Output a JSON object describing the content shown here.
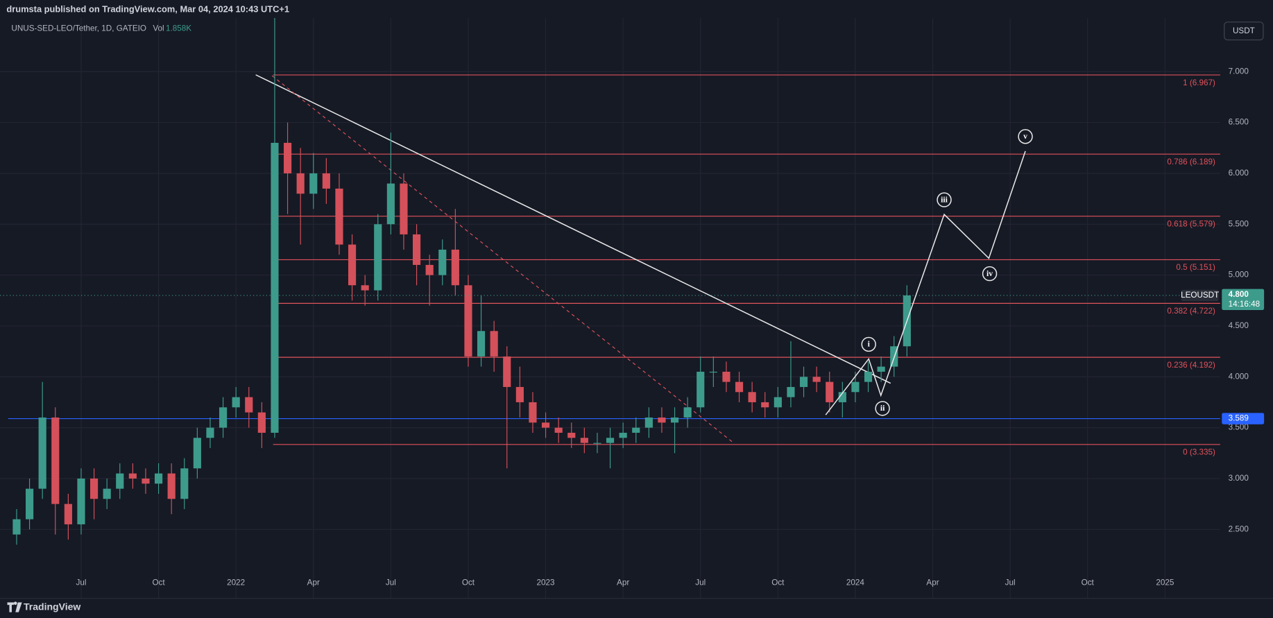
{
  "chart_data": {
    "type": "candlestick",
    "published": "drumsta published on TradingView.com, Mar 04, 2024 10:43 UTC+1",
    "title": "UNUS-SED-LEO/Tether, 1D, GATEIO",
    "volume_label": "Vol",
    "volume": "1.858K",
    "currency": "USDT",
    "symbol": "LEOUSDT",
    "countdown": "14:16:48",
    "brand": "TradingView",
    "up_color": "#3d9b8c",
    "down_color": "#d4505a",
    "grid": true,
    "xlim": [
      3.17,
      50.14
    ],
    "ylim": [
      1.87,
      7.527
    ],
    "xticks": [
      {
        "value": 6,
        "label": "Jul"
      },
      {
        "value": 9,
        "label": "Oct"
      },
      {
        "value": 12,
        "label": "2022"
      },
      {
        "value": 15,
        "label": "Apr"
      },
      {
        "value": 18,
        "label": "Jul"
      },
      {
        "value": 21,
        "label": "Oct"
      },
      {
        "value": 24,
        "label": "2023"
      },
      {
        "value": 27,
        "label": "Apr"
      },
      {
        "value": 30,
        "label": "Jul"
      },
      {
        "value": 33,
        "label": "Oct"
      },
      {
        "value": 36,
        "label": "2024"
      },
      {
        "value": 39,
        "label": "Apr"
      },
      {
        "value": 42,
        "label": "Jul"
      },
      {
        "value": 45,
        "label": "Oct"
      },
      {
        "value": 48,
        "label": "2025"
      }
    ],
    "yticks": [
      {
        "value": 2.5,
        "label": "2.500"
      },
      {
        "value": 3,
        "label": "3.000"
      },
      {
        "value": 3.5,
        "label": "3.500"
      },
      {
        "value": 4,
        "label": "4.000"
      },
      {
        "value": 4.5,
        "label": "4.500"
      },
      {
        "value": 5,
        "label": "5.000"
      },
      {
        "value": 5.5,
        "label": "5.500"
      },
      {
        "value": 6,
        "label": "6.000"
      },
      {
        "value": 6.5,
        "label": "6.500"
      },
      {
        "value": 7,
        "label": "7.000"
      }
    ],
    "x": [
      3.5,
      4.0,
      4.5,
      5.0,
      5.5,
      6.0,
      6.5,
      7.0,
      7.5,
      8.0,
      8.5,
      9.0,
      9.5,
      10.0,
      10.5,
      11.0,
      11.5,
      12.0,
      12.5,
      13.0,
      13.5,
      14.0,
      14.5,
      15.0,
      15.5,
      16.0,
      16.5,
      17.0,
      17.5,
      18.0,
      18.5,
      19.0,
      19.5,
      20.0,
      20.5,
      21.0,
      21.5,
      22.0,
      22.5,
      23.0,
      23.5,
      24.0,
      24.5,
      25.0,
      25.5,
      26.0,
      26.5,
      27.0,
      27.5,
      28.0,
      28.5,
      29.0,
      29.5,
      30.0,
      30.5,
      31.0,
      31.5,
      32.0,
      32.5,
      33.0,
      33.5,
      34.0,
      34.5,
      35.0,
      35.5,
      36.0,
      36.5,
      37.0,
      37.5,
      38.0
    ],
    "open": [
      2.45,
      2.6,
      2.9,
      3.6,
      2.75,
      2.55,
      3.0,
      2.8,
      2.9,
      3.05,
      3.0,
      2.95,
      3.05,
      2.8,
      3.1,
      3.4,
      3.5,
      3.7,
      3.8,
      3.65,
      3.45,
      6.3,
      6.0,
      5.8,
      6.0,
      5.85,
      5.3,
      4.9,
      4.85,
      5.5,
      5.9,
      5.4,
      5.1,
      5.0,
      5.25,
      4.9,
      4.2,
      4.45,
      4.2,
      3.9,
      3.75,
      3.55,
      3.5,
      3.45,
      3.4,
      3.35,
      3.35,
      3.4,
      3.45,
      3.5,
      3.6,
      3.55,
      3.6,
      3.7,
      4.05,
      4.05,
      3.95,
      3.85,
      3.75,
      3.7,
      3.8,
      3.9,
      4.0,
      3.95,
      3.75,
      3.85,
      3.95,
      4.05,
      4.1,
      4.3
    ],
    "high": [
      2.7,
      3.0,
      3.95,
      3.7,
      2.85,
      3.1,
      3.1,
      3.0,
      3.15,
      3.15,
      3.1,
      3.15,
      3.15,
      3.2,
      3.5,
      3.6,
      3.8,
      3.9,
      3.9,
      3.75,
      7.55,
      6.5,
      6.25,
      6.2,
      6.15,
      6.0,
      5.4,
      5.0,
      5.6,
      6.4,
      6.0,
      5.5,
      5.2,
      5.35,
      5.65,
      5.0,
      4.8,
      4.55,
      4.3,
      4.1,
      3.85,
      3.65,
      3.6,
      3.55,
      3.5,
      3.45,
      3.5,
      3.55,
      3.6,
      3.7,
      3.7,
      3.7,
      3.8,
      4.2,
      4.2,
      4.15,
      4.05,
      3.95,
      3.85,
      3.9,
      4.35,
      4.1,
      4.1,
      4.05,
      3.95,
      4.05,
      4.15,
      4.2,
      4.4,
      4.9
    ],
    "low": [
      2.35,
      2.5,
      2.8,
      2.45,
      2.4,
      2.45,
      2.6,
      2.7,
      2.8,
      2.9,
      2.85,
      2.85,
      2.65,
      2.7,
      3.0,
      3.3,
      3.4,
      3.6,
      3.5,
      3.3,
      3.4,
      5.6,
      5.3,
      5.65,
      5.7,
      5.2,
      4.75,
      4.7,
      4.75,
      5.4,
      5.25,
      4.9,
      4.7,
      4.9,
      4.8,
      4.1,
      4.1,
      4.05,
      3.1,
      3.6,
      3.45,
      3.4,
      3.35,
      3.3,
      3.25,
      3.25,
      3.1,
      3.3,
      3.35,
      3.4,
      3.45,
      3.25,
      3.5,
      3.65,
      3.9,
      3.85,
      3.75,
      3.65,
      3.6,
      3.6,
      3.7,
      3.8,
      3.85,
      3.65,
      3.6,
      3.75,
      3.85,
      3.95,
      4.0,
      4.2
    ],
    "close": [
      2.6,
      2.9,
      3.6,
      2.75,
      2.55,
      3.0,
      2.8,
      2.9,
      3.05,
      3.0,
      2.95,
      3.05,
      2.8,
      3.1,
      3.4,
      3.5,
      3.7,
      3.8,
      3.65,
      3.45,
      6.3,
      6.0,
      5.8,
      6.0,
      5.85,
      5.3,
      4.9,
      4.85,
      5.5,
      5.9,
      5.4,
      5.1,
      5.0,
      5.25,
      4.9,
      4.2,
      4.45,
      4.2,
      3.9,
      3.75,
      3.55,
      3.5,
      3.45,
      3.4,
      3.35,
      3.35,
      3.4,
      3.45,
      3.5,
      3.6,
      3.55,
      3.6,
      3.7,
      4.05,
      4.05,
      3.95,
      3.85,
      3.75,
      3.7,
      3.8,
      3.9,
      4.0,
      3.95,
      3.75,
      3.85,
      3.95,
      4.05,
      4.1,
      4.3,
      4.8
    ],
    "fib_color": "#e0525b",
    "fib_levels": [
      {
        "value": 6.967,
        "label": "1 (6.967)"
      },
      {
        "value": 6.189,
        "label": "0.786 (6.189)"
      },
      {
        "value": 5.579,
        "label": "0.618 (5.579)"
      },
      {
        "value": 5.151,
        "label": "0.5 (5.151)"
      },
      {
        "value": 4.722,
        "label": "0.382 (4.722)"
      },
      {
        "value": 4.192,
        "label": "0.236 (4.192)"
      },
      {
        "value": 3.335,
        "label": "0 (3.335)"
      }
    ],
    "level_color": "#2962ff",
    "level": 3.589,
    "last_price": {
      "value": 4.8,
      "label": "4.800"
    },
    "waves": [
      "i",
      "ii",
      "iii",
      "iv",
      "v"
    ]
  }
}
